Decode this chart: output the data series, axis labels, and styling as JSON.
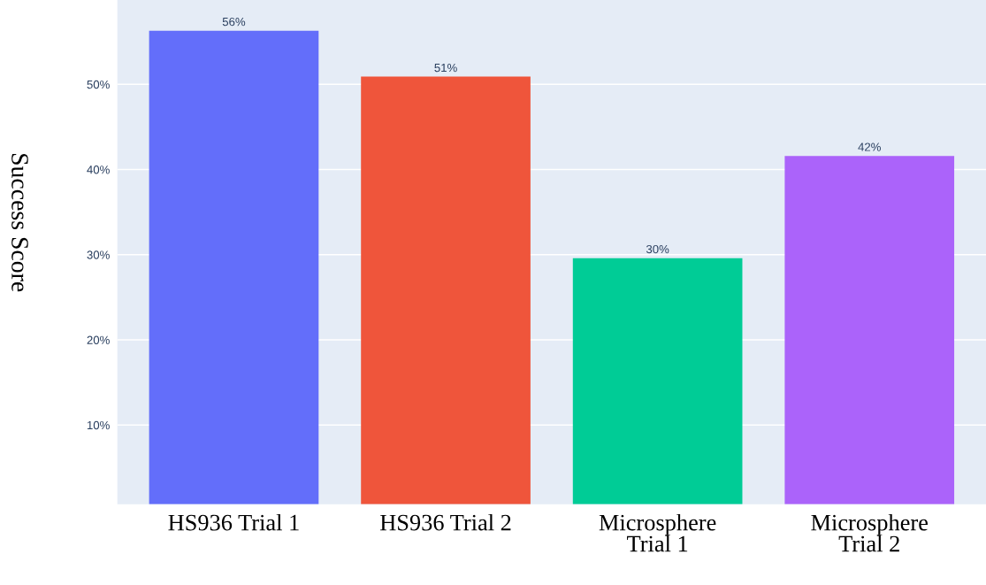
{
  "chart_data": {
    "type": "bar",
    "ylabel": "Success Score",
    "categories": [
      "HS936 Trial 1",
      "HS936 Trial 2",
      "Microsphere\nTrial 1",
      "Microsphere\nTrial 2"
    ],
    "values": [
      56.3,
      50.9,
      29.6,
      41.6
    ],
    "colors": [
      "#636efa",
      "#ef553b",
      "#00cc96",
      "#ab63fa"
    ],
    "value_labels": [
      "56%",
      "51%",
      "30%",
      "42%"
    ],
    "ylim": [
      0.7,
      59.9
    ],
    "yticks": [
      {
        "value": 10,
        "label": "10%"
      },
      {
        "value": 20,
        "label": "20%"
      },
      {
        "value": 30,
        "label": "30%"
      },
      {
        "value": 40,
        "label": "40%"
      },
      {
        "value": 50,
        "label": "50%"
      }
    ],
    "grid": "y"
  }
}
